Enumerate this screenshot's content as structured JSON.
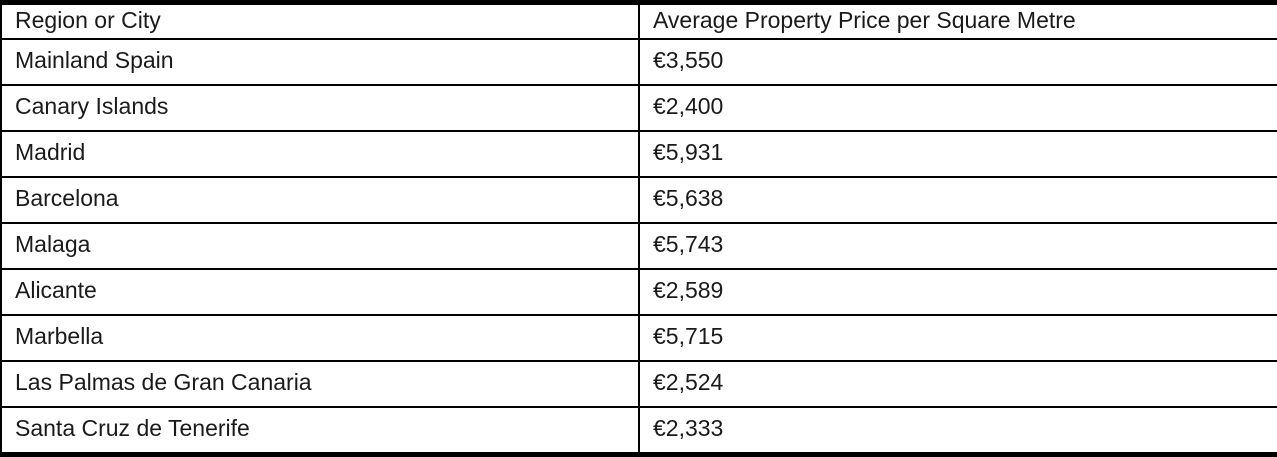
{
  "table": {
    "columns": [
      {
        "label": "Region or City"
      },
      {
        "label": "Average Property Price per Square Metre"
      }
    ],
    "rows": [
      {
        "region": "Mainland Spain",
        "price": "€3,550"
      },
      {
        "region": "Canary Islands",
        "price": "€2,400"
      },
      {
        "region": "Madrid",
        "price": "€5,931"
      },
      {
        "region": "Barcelona",
        "price": "€5,638"
      },
      {
        "region": "Malaga",
        "price": "€5,743"
      },
      {
        "region": "Alicante",
        "price": "€2,589"
      },
      {
        "region": "Marbella",
        "price": "€5,715"
      },
      {
        "region": "Las Palmas de Gran Canaria",
        "price": "€2,524"
      },
      {
        "region": "Santa Cruz de Tenerife",
        "price": "€2,333"
      }
    ]
  },
  "colors": {
    "border": "#000000",
    "text": "#1a1a1a",
    "background": "#ffffff"
  },
  "chart_data": {
    "type": "table",
    "columns": [
      "Region or City",
      "Average Property Price per Square Metre"
    ],
    "rows": [
      [
        "Mainland Spain",
        3550
      ],
      [
        "Canary Islands",
        2400
      ],
      [
        "Madrid",
        5931
      ],
      [
        "Barcelona",
        5638
      ],
      [
        "Malaga",
        5743
      ],
      [
        "Alicante",
        2589
      ],
      [
        "Marbella",
        5715
      ],
      [
        "Las Palmas de Gran Canaria",
        2524
      ],
      [
        "Santa Cruz de Tenerife",
        2333
      ]
    ],
    "currency": "EUR"
  }
}
